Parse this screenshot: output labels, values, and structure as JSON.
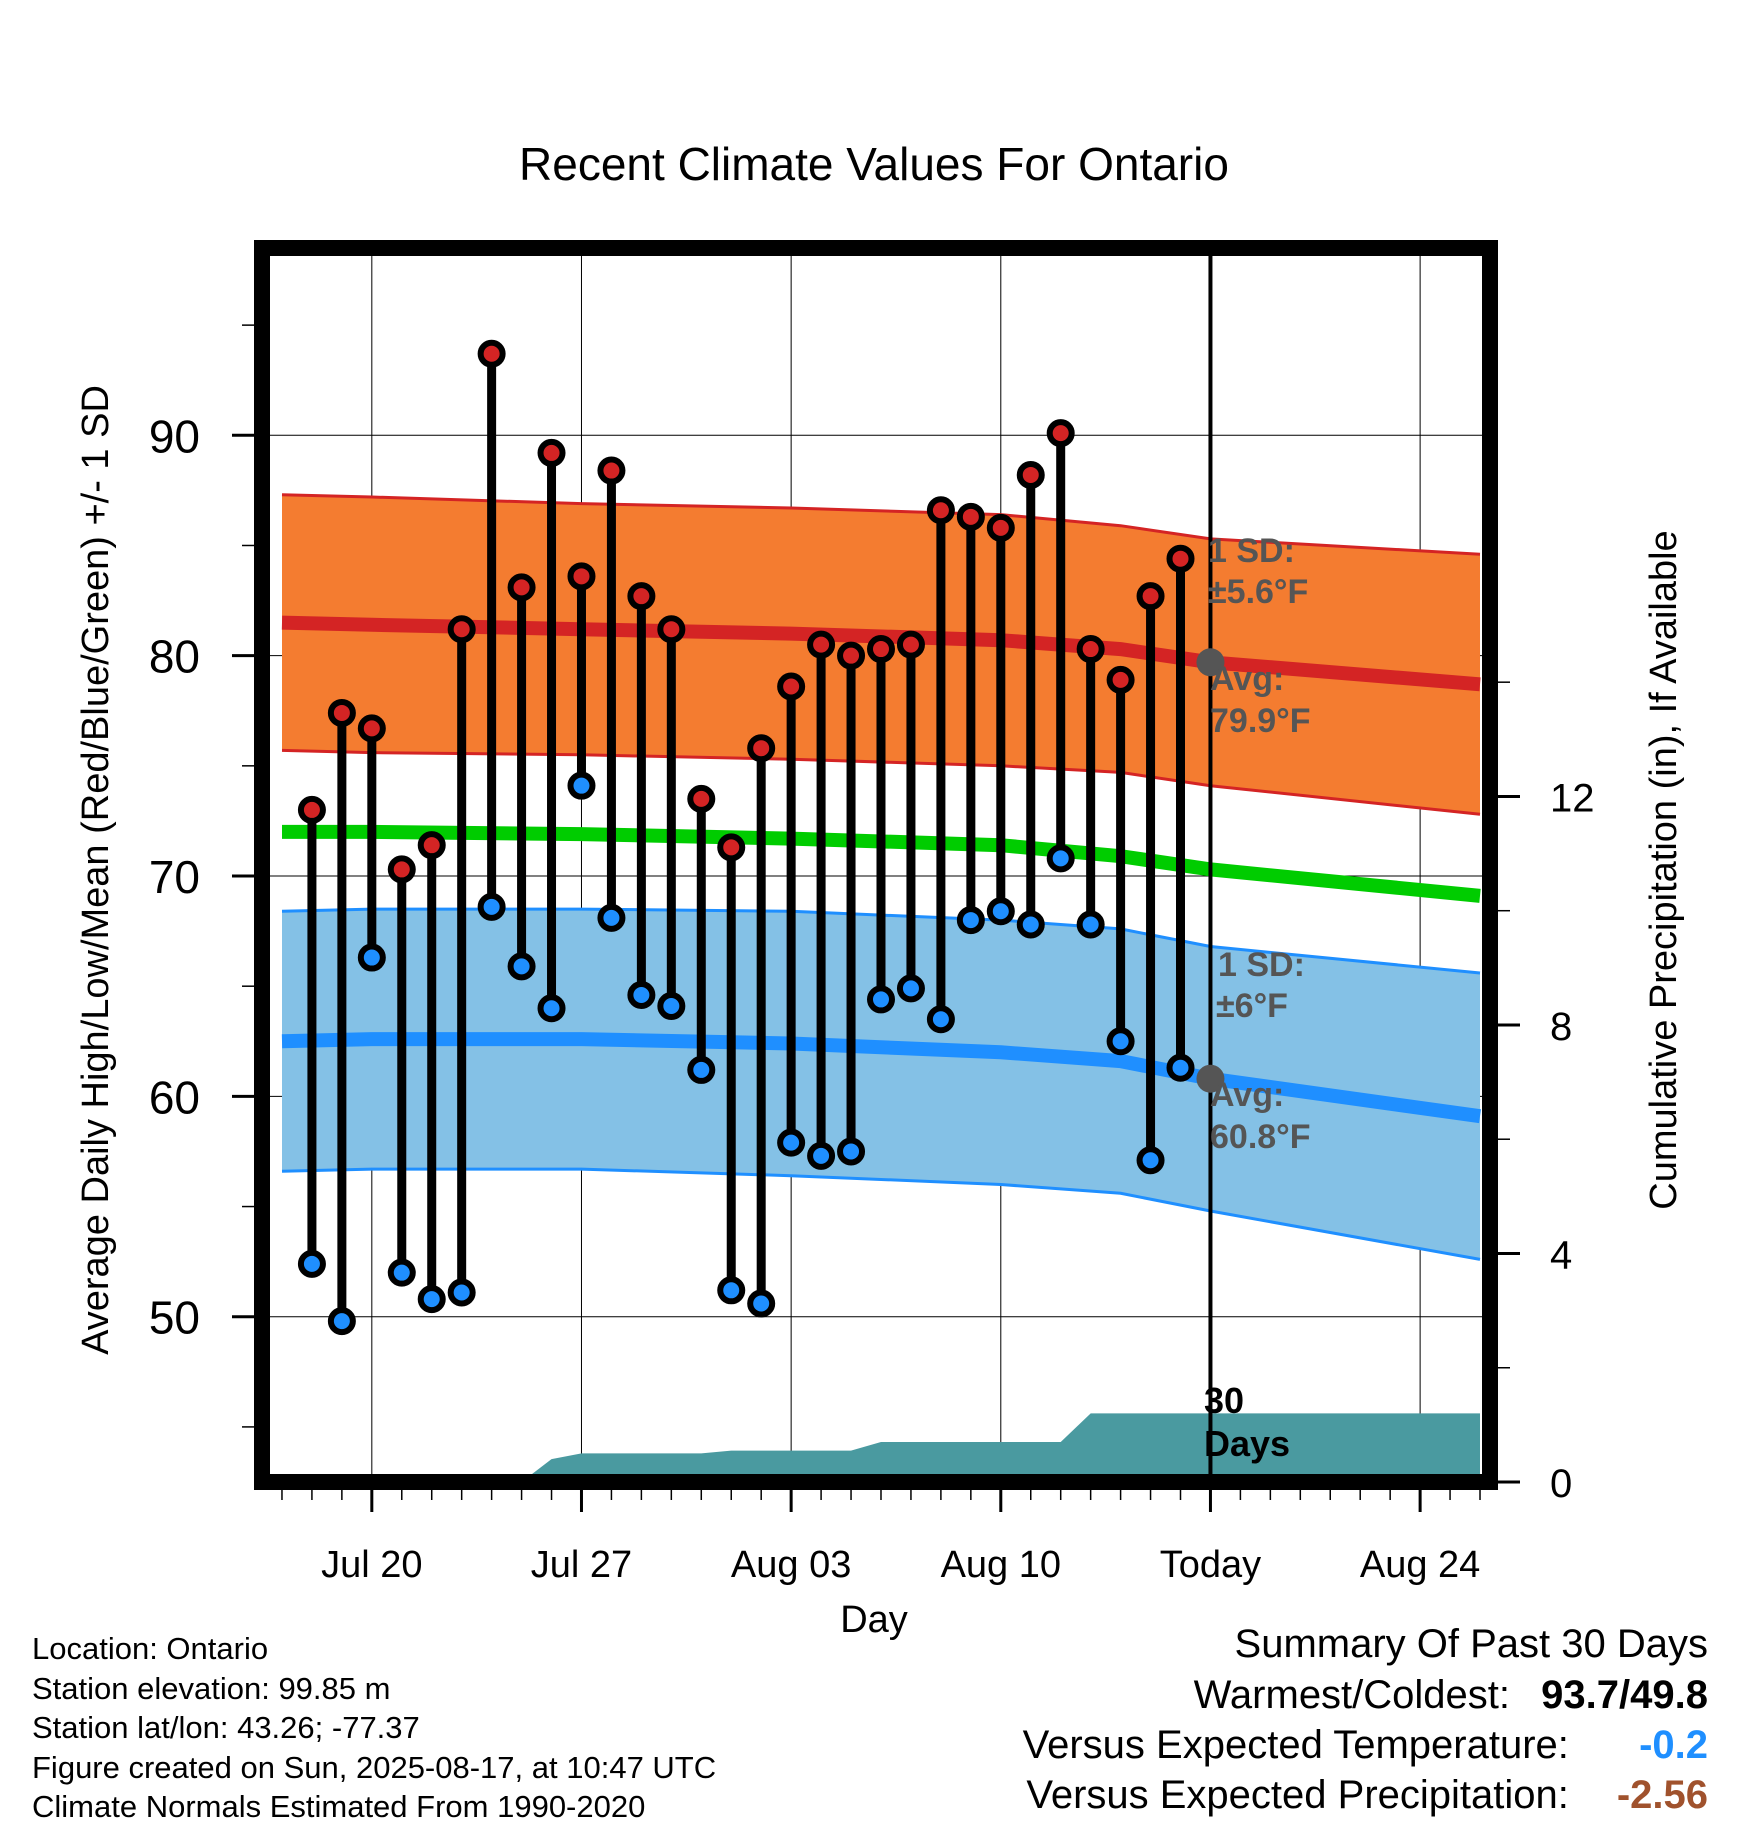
{
  "chart_data": {
    "type": "line",
    "title": "Recent Climate Values For Ontario",
    "xlabel": "Day",
    "ylabel": "Average Daily High/Low/Mean (Red/Blue/Green) +/- 1 SD",
    "y2label": "Cumulative Precipitation (in), If Available",
    "xticklabels": [
      "Jul 20",
      "Jul 27",
      "Aug 03",
      "Aug 10",
      "Today",
      "Aug 24"
    ],
    "yticks": [
      50,
      60,
      70,
      80,
      90
    ],
    "y2ticks": [
      0,
      4,
      8,
      12
    ],
    "ylim": [
      42.5,
      98.5
    ],
    "y2lim": [
      0,
      21.6
    ],
    "x_domain": [
      "2025-07-16T20:00",
      "2025-08-26T20:00"
    ],
    "today": "2025-08-17",
    "grid": true,
    "days": [
      "2025-07-18",
      "2025-07-19",
      "2025-07-20",
      "2025-07-21",
      "2025-07-22",
      "2025-07-23",
      "2025-07-24",
      "2025-07-25",
      "2025-07-26",
      "2025-07-27",
      "2025-07-28",
      "2025-07-29",
      "2025-07-30",
      "2025-07-31",
      "2025-08-01",
      "2025-08-02",
      "2025-08-03",
      "2025-08-04",
      "2025-08-05",
      "2025-08-06",
      "2025-08-07",
      "2025-08-08",
      "2025-08-09",
      "2025-08-10",
      "2025-08-11",
      "2025-08-12",
      "2025-08-13",
      "2025-08-14",
      "2025-08-15",
      "2025-08-16"
    ],
    "daily_high": [
      73.0,
      77.4,
      76.7,
      70.3,
      71.4,
      81.2,
      93.7,
      83.1,
      89.2,
      83.6,
      88.4,
      82.7,
      81.2,
      73.5,
      71.3,
      75.8,
      78.6,
      80.5,
      80.0,
      80.3,
      80.5,
      86.6,
      86.3,
      85.8,
      88.2,
      90.1,
      80.3,
      78.9,
      82.7,
      84.4
    ],
    "daily_low": [
      52.4,
      49.8,
      66.3,
      52.0,
      50.8,
      51.1,
      68.6,
      65.9,
      64.0,
      74.1,
      68.1,
      64.6,
      64.1,
      61.2,
      51.2,
      50.6,
      57.9,
      57.3,
      57.5,
      64.4,
      64.9,
      63.5,
      68.0,
      68.4,
      67.8,
      70.8,
      67.8,
      62.5,
      57.1,
      61.3
    ],
    "normals": [
      {
        "name": "Normal High",
        "values": [
          81.5,
          81.4,
          81.2,
          81.0,
          80.7,
          80.3,
          79.7,
          78.7
        ],
        "sd": [
          5.8,
          5.8,
          5.7,
          5.7,
          5.7,
          5.6,
          5.6,
          5.9
        ]
      },
      {
        "name": "Normal Mean",
        "values": [
          72.0,
          72.0,
          71.9,
          71.7,
          71.4,
          70.9,
          70.3,
          69.1
        ]
      },
      {
        "name": "Normal Low",
        "values": [
          62.5,
          62.6,
          62.6,
          62.4,
          62.0,
          61.6,
          60.8,
          59.1
        ],
        "sd": [
          5.9,
          5.9,
          5.9,
          6.0,
          6.0,
          6.0,
          6.0,
          6.5
        ]
      }
    ],
    "normals_days": [
      "2025-07-17",
      "2025-07-20",
      "2025-07-27",
      "2025-08-03",
      "2025-08-10",
      "2025-08-14",
      "2025-08-17",
      "2025-08-26"
    ],
    "precip_cumulative": [
      [
        "2025-07-17",
        0
      ],
      [
        "2025-07-25",
        0
      ],
      [
        "2025-07-26",
        0.4
      ],
      [
        "2025-07-27",
        0.5
      ],
      [
        "2025-07-31",
        0.5
      ],
      [
        "2025-08-01",
        0.55
      ],
      [
        "2025-08-05",
        0.55
      ],
      [
        "2025-08-06",
        0.7
      ],
      [
        "2025-08-12",
        0.7
      ],
      [
        "2025-08-13",
        1.2
      ],
      [
        "2025-08-17",
        1.2
      ],
      [
        "2025-08-26",
        1.2
      ]
    ],
    "annotations": {
      "high_sd_label": "1 SD:",
      "high_sd_value": "±5.6°F",
      "high_avg_label": "Avg:",
      "high_avg_value": "79.9°F",
      "low_sd_label": "1 SD:",
      "low_sd_value": "±6°F",
      "low_avg_label": "Avg:",
      "low_avg_value": "60.8°F",
      "days_count": "30",
      "days_word": "Days"
    },
    "colors": {
      "high": "#d42424",
      "high_band": "#f47c30",
      "low": "#1f8fff",
      "low_band": "#84c1e6",
      "mean": "#00cc00",
      "precip": "#4a9aa0",
      "annotation": "#555555"
    }
  },
  "info": {
    "location": "Location: Ontario",
    "elevation": "Station elevation: 99.85 m",
    "latlon": "Station lat/lon: 43.26; -77.37",
    "created": "Figure created on Sun, 2025-08-17, at 10:47 UTC",
    "normals": "Climate Normals Estimated From 1990-2020"
  },
  "summary": {
    "heading": "Summary Of Past 30 Days",
    "warm_cold_label": "Warmest/Coldest:",
    "warmest": "93.7",
    "slash": "/",
    "coldest": "49.8",
    "temp_label": "Versus Expected Temperature:",
    "temp_value": "-0.2",
    "temp_color": "#1f8fff",
    "precip_label": "Versus Expected Precipitation:",
    "precip_value": "-2.56",
    "precip_color": "#a0522d"
  }
}
